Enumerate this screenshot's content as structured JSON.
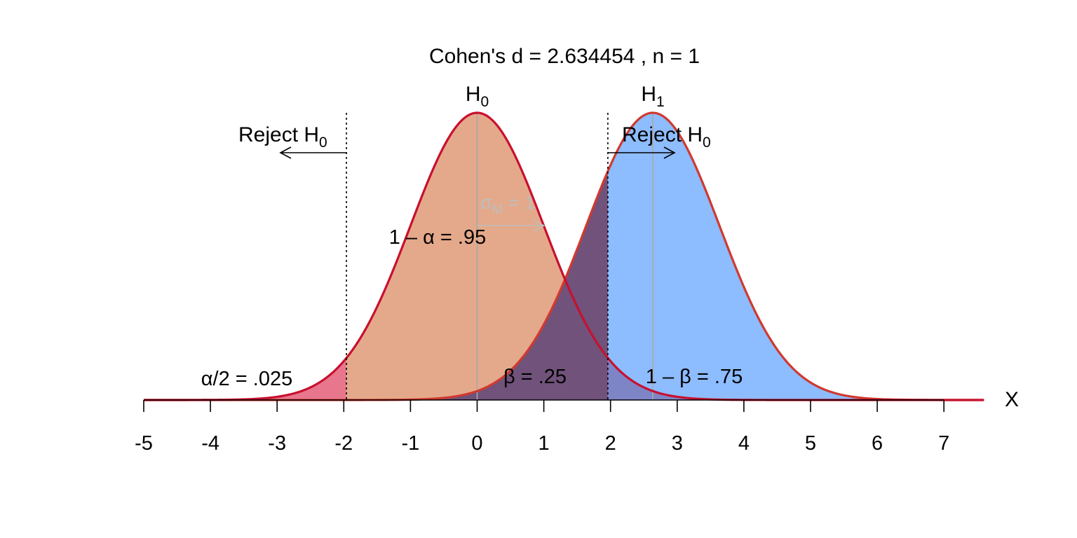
{
  "chart_data": {
    "type": "area",
    "title": "Cohen's d = 2.634454 , n = 1",
    "xlabel": "X",
    "xlim": [
      -5,
      7.6
    ],
    "x_ticks": [
      "-5",
      "-4",
      "-3",
      "-2",
      "-1",
      "0",
      "1",
      "2",
      "3",
      "4",
      "5",
      "6",
      "7"
    ],
    "distributions": [
      {
        "label": "H",
        "subscript": "0",
        "mean": 0,
        "sd": 1,
        "line_color": "#c8102e",
        "fill_color": "#e4a98a"
      },
      {
        "label": "H",
        "subscript": "1",
        "mean": 2.634454,
        "sd": 1,
        "line_color": "#d0392f",
        "fill_color": "#8dbcff"
      }
    ],
    "critical_values": [
      -1.96,
      1.96
    ],
    "sigma_label": {
      "symbol": "σ",
      "subscript": "M",
      "suffix": " = 1",
      "color": "#bdbdbd"
    },
    "reject_labels": [
      {
        "text": "Reject H",
        "subscript": "0",
        "direction": "left"
      },
      {
        "text": "Reject H",
        "subscript": "0",
        "direction": "right"
      }
    ],
    "region_labels": {
      "alpha_half": "α/2 = .025",
      "one_minus_alpha": "1 – α = .95",
      "beta": "β = .25",
      "power": "1 – β = .75"
    },
    "region_colors": {
      "alpha_tail": "#e8778e",
      "overlap_beta": "#70527a",
      "overlap_upper": "#7e85c6"
    }
  }
}
